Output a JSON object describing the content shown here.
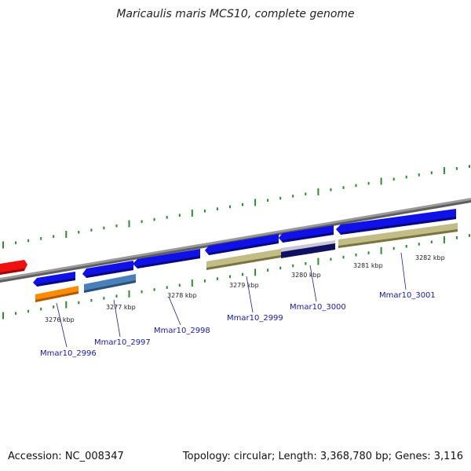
{
  "title": "Maricaulis maris MCS10, complete genome",
  "footer": {
    "accession": "Accession: NC_008347",
    "stats": "Topology: circular; Length: 3,368,780 bp; Genes: 3,116"
  },
  "colors": {
    "backbone": "#8a8a8a",
    "ticks": "#2e8b2e",
    "gene_blue": "#1010e8",
    "gene_red": "#ee1111",
    "orange": "#ff8c00",
    "steelblue": "#4a7fb8",
    "khaki": "#bdb780",
    "navy": "#101060",
    "label": "#1a1aa8"
  },
  "scale_labels": [
    "3276 kbp",
    "3277 kbp",
    "3278 kbp",
    "3279 kbp",
    "3280 kbp",
    "3281 kbp",
    "3282 kbp"
  ],
  "gene_labels": [
    "Mmar10_2996",
    "Mmar10_2997",
    "Mmar10_2998",
    "Mmar10_2999",
    "Mmar10_3000",
    "Mmar10_3001"
  ]
}
